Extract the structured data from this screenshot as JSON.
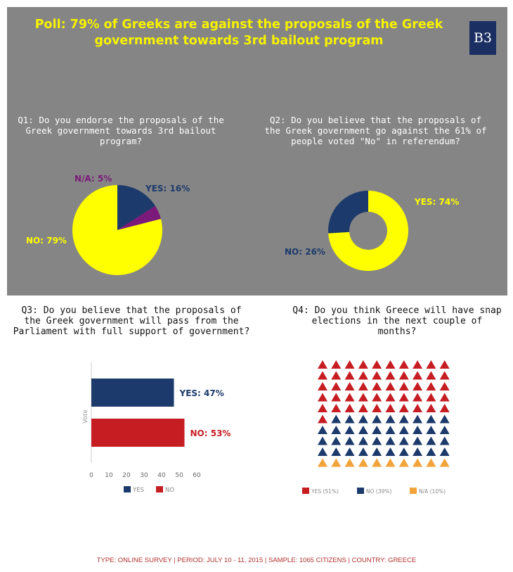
{
  "header": {
    "title": "Poll: 79% of Greeks are against the proposals of the Greek government towards 3rd bailout program",
    "logo_text": "B3"
  },
  "colors": {
    "panel": "#858585",
    "yellow": "#ffff00",
    "navy": "#1c3a6b",
    "purple": "#7b1a7a",
    "red": "#c61d23",
    "orange": "#f2a33a",
    "title": "#f7f200"
  },
  "footer": {
    "text": "TYPE: ONLINE SURVEY | PERIOD: JULY 10 - 11, 2015 | SAMPLE: 1065 CITIZENS | COUNTRY: GREECE"
  },
  "chart_data": [
    {
      "type": "pie",
      "title": "Q1: Do you endorse the proposals of the Greek government towards 3rd bailout program?",
      "categories": [
        "YES",
        "N/A",
        "NO"
      ],
      "values": [
        16,
        5,
        79
      ],
      "labels": [
        "YES: 16%",
        "N/A: 5%",
        "NO: 79%"
      ]
    },
    {
      "type": "pie",
      "title": "Q2: Do you believe that the proposals of the Greek government go against the 61% of people voted \"No\" in referendum?",
      "categories": [
        "YES",
        "NO"
      ],
      "values": [
        74,
        26
      ],
      "labels": [
        "YES: 74%",
        "NO: 26%"
      ],
      "donut": true
    },
    {
      "type": "bar",
      "orientation": "horizontal",
      "title": "Q3: Do you believe that the proposals of the Greek government will pass from the Parliament with full support of government?",
      "categories": [
        "YES",
        "NO"
      ],
      "values": [
        47,
        53
      ],
      "labels": [
        "YES: 47%",
        "NO: 53%"
      ],
      "ylabel": "Vote",
      "xlim": [
        0,
        60
      ],
      "ticks": [
        "0",
        "10",
        "20",
        "30",
        "40",
        "50",
        "60"
      ],
      "legend": [
        "YES",
        "NO"
      ]
    },
    {
      "type": "pictograph",
      "title": "Q4: Do you think Greece will have snap elections in the next couple of months?",
      "categories": [
        "YES",
        "NO",
        "N/A"
      ],
      "values": [
        51,
        39,
        10
      ],
      "legend": [
        "YES (51%)",
        "NO (39%)",
        "N/A (10%)"
      ]
    }
  ]
}
